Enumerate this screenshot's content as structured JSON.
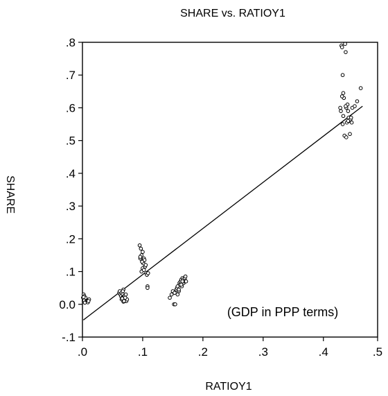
{
  "chart_data": {
    "type": "scatter",
    "title": "SHARE vs. RATIOY1",
    "xlabel": "RATIOY1",
    "ylabel": "SHARE",
    "annotation": "(GDP in PPP terms)",
    "xlim": [
      0.01,
      0.5
    ],
    "ylim": [
      -0.1,
      0.8
    ],
    "x_ticks": [
      ".0",
      ".1",
      ".2",
      ".3",
      ".4",
      ".5"
    ],
    "x_tick_values": [
      0.01,
      0.11,
      0.21,
      0.31,
      0.41,
      0.51
    ],
    "y_ticks": [
      "-.1",
      "0.0",
      ".1",
      ".2",
      ".3",
      ".4",
      ".5",
      ".6",
      ".7",
      ".8"
    ],
    "y_tick_values": [
      -0.1,
      0.0,
      0.1,
      0.2,
      0.3,
      0.4,
      0.5,
      0.6,
      0.7,
      0.8
    ],
    "grid": false,
    "fit_line": {
      "x": [
        0.0115,
        0.475
      ],
      "y": [
        -0.048,
        0.605
      ]
    },
    "series": [
      {
        "x": [
          0.011,
          0.012,
          0.013,
          0.012,
          0.014,
          0.013,
          0.015,
          0.016,
          0.014,
          0.012,
          0.018,
          0.019,
          0.02,
          0.021,
          0.019,
          0.02,
          0.071,
          0.072,
          0.073,
          0.074,
          0.075,
          0.075,
          0.076,
          0.077,
          0.078,
          0.079,
          0.08,
          0.081,
          0.082,
          0.078,
          0.077,
          0.08,
          0.083,
          0.084,
          0.082,
          0.081,
          0.079,
          0.076,
          0.105,
          0.107,
          0.108,
          0.106,
          0.109,
          0.11,
          0.111,
          0.112,
          0.113,
          0.11,
          0.108,
          0.114,
          0.115,
          0.116,
          0.117,
          0.112,
          0.118,
          0.106,
          0.109,
          0.119,
          0.118,
          0.155,
          0.158,
          0.16,
          0.162,
          0.164,
          0.163,
          0.166,
          0.167,
          0.168,
          0.17,
          0.171,
          0.172,
          0.173,
          0.174,
          0.175,
          0.176,
          0.177,
          0.178,
          0.179,
          0.18,
          0.181,
          0.182,
          0.174,
          0.17,
          0.168,
          0.176,
          0.438,
          0.44,
          0.441,
          0.442,
          0.443,
          0.444,
          0.446,
          0.447,
          0.448,
          0.449,
          0.45,
          0.451,
          0.452,
          0.453,
          0.455,
          0.456,
          0.458,
          0.462,
          0.466,
          0.472,
          0.439,
          0.442,
          0.445,
          0.448,
          0.451,
          0.454,
          0.457,
          0.443,
          0.447,
          0.441
        ],
        "y": [
          0.02,
          0.03,
          0.025,
          0.01,
          0.015,
          0.012,
          0.02,
          0.008,
          0.005,
          0.022,
          0.01,
          0.008,
          0.012,
          0.015,
          0.006,
          0.01,
          0.035,
          0.04,
          0.03,
          0.025,
          0.015,
          0.035,
          0.02,
          0.03,
          0.045,
          0.025,
          0.015,
          0.01,
          0.012,
          0.008,
          0.04,
          0.025,
          0.01,
          0.015,
          0.03,
          0.02,
          0.01,
          0.018,
          0.18,
          0.17,
          0.15,
          0.14,
          0.13,
          0.16,
          0.125,
          0.14,
          0.135,
          0.11,
          0.1,
          0.115,
          0.12,
          0.095,
          0.09,
          0.105,
          0.055,
          0.145,
          0.13,
          0.095,
          0.05,
          0.02,
          0.03,
          0.04,
          0.0,
          0.0,
          0.035,
          0.045,
          0.05,
          0.055,
          0.04,
          0.065,
          0.06,
          0.07,
          0.075,
          0.055,
          0.08,
          0.075,
          0.065,
          0.07,
          0.08,
          0.085,
          0.07,
          0.06,
          0.045,
          0.03,
          0.07,
          0.6,
          0.79,
          0.785,
          0.7,
          0.645,
          0.63,
          0.795,
          0.77,
          0.6,
          0.555,
          0.61,
          0.59,
          0.57,
          0.56,
          0.565,
          0.57,
          0.6,
          0.605,
          0.62,
          0.66,
          0.59,
          0.55,
          0.515,
          0.51,
          0.56,
          0.52,
          0.555,
          0.575,
          0.605,
          0.635
        ]
      }
    ]
  }
}
